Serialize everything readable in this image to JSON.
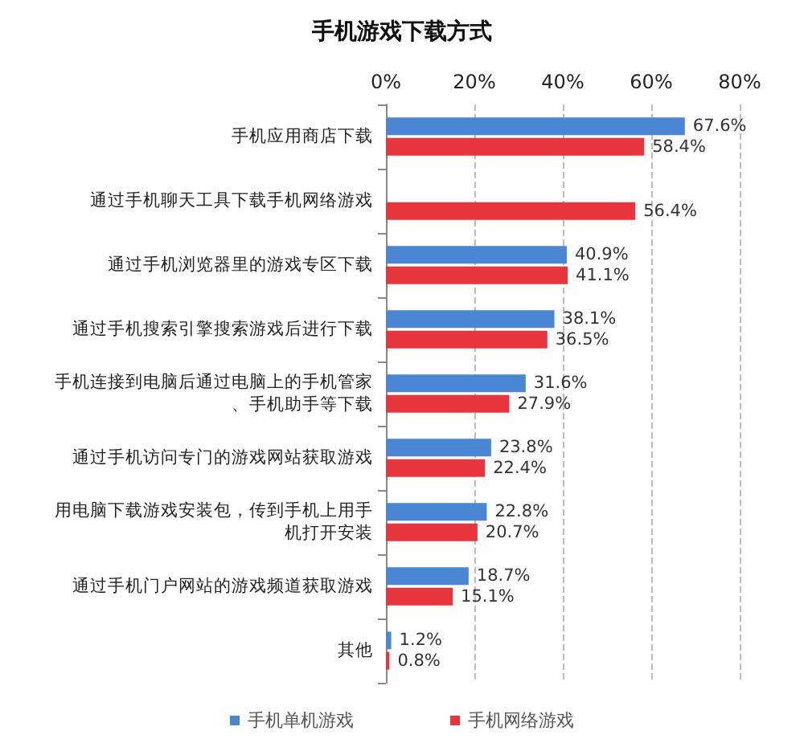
{
  "chart_data": {
    "type": "bar",
    "orientation": "horizontal",
    "title": "手机游戏下载方式",
    "categories": [
      "手机应用商店下载",
      "通过手机聊天工具下载手机网络游戏",
      "通过手机浏览器里的游戏专区下载",
      "通过手机搜索引擎搜索游戏后进行下载",
      "手机连接到电脑后通过电脑上的手机管家、手机助手等下载",
      "通过手机访问专门的游戏网站获取游戏",
      "用电脑下载游戏安装包，传到手机上用手机打开安装",
      "通过手机门户网站的游戏频道获取游戏",
      "其他"
    ],
    "series": [
      {
        "name": "手机单机游戏",
        "color": "#4a86d4",
        "values": [
          67.6,
          null,
          40.9,
          38.1,
          31.6,
          23.8,
          22.8,
          18.7,
          1.2
        ],
        "value_labels": [
          "67.6%",
          null,
          "40.9%",
          "38.1%",
          "31.6%",
          "23.8%",
          "22.8%",
          "18.7%",
          "1.2%"
        ]
      },
      {
        "name": "手机网络游戏",
        "color": "#e8343c",
        "values": [
          58.4,
          56.4,
          41.1,
          36.5,
          27.9,
          22.4,
          20.7,
          15.1,
          0.8
        ],
        "value_labels": [
          "58.4%",
          "56.4%",
          "41.1%",
          "36.5%",
          "27.9%",
          "22.4%",
          "20.7%",
          "15.1%",
          "0.8%"
        ]
      }
    ],
    "xlim": [
      0,
      80
    ],
    "xticks": [
      {
        "value": 0,
        "label": "0%"
      },
      {
        "value": 20,
        "label": "20%"
      },
      {
        "value": 40,
        "label": "40%"
      },
      {
        "value": 60,
        "label": "60%"
      },
      {
        "value": 80,
        "label": "80%"
      }
    ],
    "grid": "x",
    "legend": "bottom"
  }
}
